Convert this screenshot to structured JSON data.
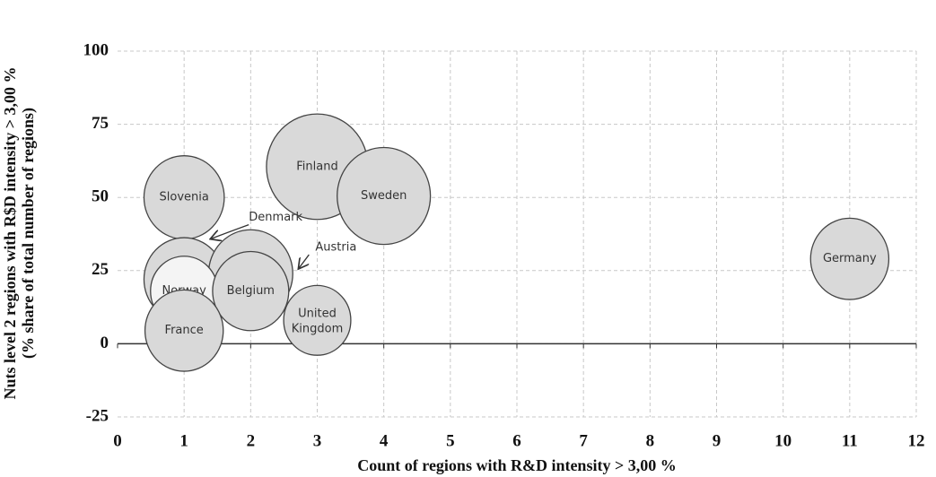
{
  "chart_data": {
    "type": "bubble",
    "xlabel": "Count of regions with R&D intensity > 3,00 %",
    "ylabel": [
      "Nuts level 2 regions with R$D intensity > 3,00 %",
      "(% share of total number of regions)"
    ],
    "xlim": [
      0,
      12
    ],
    "xticks": [
      0,
      1,
      2,
      3,
      4,
      5,
      6,
      7,
      8,
      9,
      10,
      11,
      12
    ],
    "ylim": [
      -25,
      100
    ],
    "yticks": [
      -25,
      0,
      25,
      50,
      75,
      100
    ],
    "grid": true,
    "points": [
      {
        "name": "Slovenia",
        "x": 1,
        "y": 50,
        "size": 20,
        "color": "#d9d9d9",
        "label": "inside"
      },
      {
        "name": "Finland",
        "x": 3,
        "y": 60.5,
        "size": 32,
        "color": "#d9d9d9",
        "label": "inside"
      },
      {
        "name": "Sweden",
        "x": 4,
        "y": 50.5,
        "size": 27,
        "color": "#d9d9d9",
        "label": "inside"
      },
      {
        "name": "Germany",
        "x": 11,
        "y": 29,
        "size": 19,
        "color": "#d9d9d9",
        "label": "inside"
      },
      {
        "name": "Denmark",
        "x": 1,
        "y": 22,
        "size": 20,
        "color": "#d9d9d9",
        "label": "arrow"
      },
      {
        "name": "Austria",
        "x": 2,
        "y": 24,
        "size": 22,
        "color": "#d9d9d9",
        "label": "arrow"
      },
      {
        "name": "Norway",
        "x": 1,
        "y": 18,
        "size": 14,
        "color": "#f4f4f4",
        "label": "inside"
      },
      {
        "name": "Belgium",
        "x": 2,
        "y": 18,
        "size": 18,
        "color": "#d9d9d9",
        "label": "inside"
      },
      {
        "name": "United Kingdom",
        "x": 3,
        "y": 8,
        "size": 14,
        "color": "#d9d9d9",
        "label": "inside"
      },
      {
        "name": "France",
        "x": 1,
        "y": 4.5,
        "size": 19,
        "color": "#d9d9d9",
        "label": "inside"
      }
    ]
  }
}
